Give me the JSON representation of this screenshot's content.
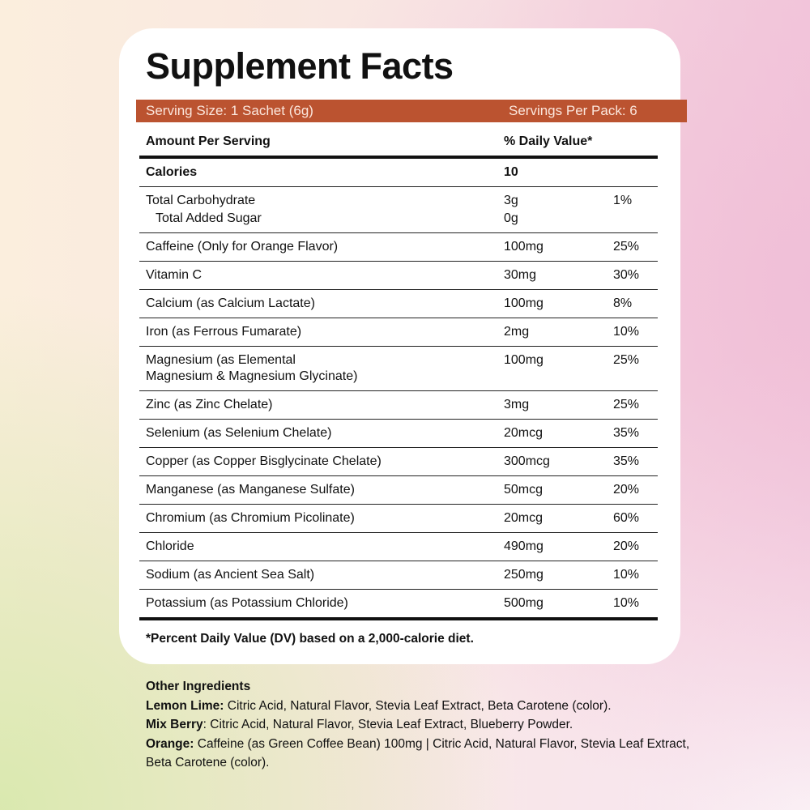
{
  "title": "Supplement Facts",
  "serving": [
    "Serving Size: 1 Sachet (6g)",
    "Servings Per Pack: 6"
  ],
  "header": [
    "Amount Per Serving",
    "% Daily Value*"
  ],
  "calories": [
    "Calories",
    "10"
  ],
  "rows": [
    [
      "Total Carbohydrate",
      "3g",
      "1%"
    ],
    [
      "Total Added Sugar",
      "0g"
    ],
    [
      "Caffeine (Only for Orange Flavor)",
      "100mg",
      "25%"
    ],
    [
      "Vitamin C",
      "30mg",
      "30%"
    ],
    [
      "Calcium (as Calcium Lactate)",
      "100mg",
      "8%"
    ],
    [
      "Iron (as Ferrous Fumarate)",
      "2mg",
      "10%"
    ],
    [
      "Magnesium (as Elemental\nMagnesium & Magnesium Glycinate)",
      "100mg",
      "25%"
    ],
    [
      "Zinc (as Zinc Chelate)",
      "3mg",
      "25%"
    ],
    [
      "Selenium (as Selenium Chelate)",
      "20mcg",
      "35%"
    ],
    [
      "Copper (as Copper Bisglycinate Chelate)",
      "300mcg",
      "35%"
    ],
    [
      "Manganese (as Manganese Sulfate)",
      "50mcg",
      "20%"
    ],
    [
      "Chromium (as Chromium Picolinate)",
      "20mcg",
      "60%"
    ],
    [
      "Chloride",
      "490mg",
      "20%"
    ],
    [
      "Sodium (as Ancient Sea Salt)",
      "250mg",
      "10%"
    ],
    [
      "Potassium (as Potassium Chloride)",
      "500mg",
      "10%"
    ]
  ],
  "footnote": "*Percent Daily Value (DV) based on a 2,000-calorie diet.",
  "other_ingredients": {
    "title": "Other Ingredients",
    "items": [
      {
        "label": "Lemon Lime:",
        "text": " Citric Acid, Natural Flavor, Stevia Leaf Extract, Beta Carotene (color)."
      },
      {
        "label": "Mix Berry",
        "text": ": Citric Acid, Natural Flavor, Stevia Leaf Extract, Blueberry Powder."
      },
      {
        "label": "Orange:",
        "text": " Caffeine (as Green Coffee Bean) 100mg | Citric Acid, Natural Flavor, Stevia Leaf Extract, Beta Carotene (color)."
      }
    ]
  }
}
